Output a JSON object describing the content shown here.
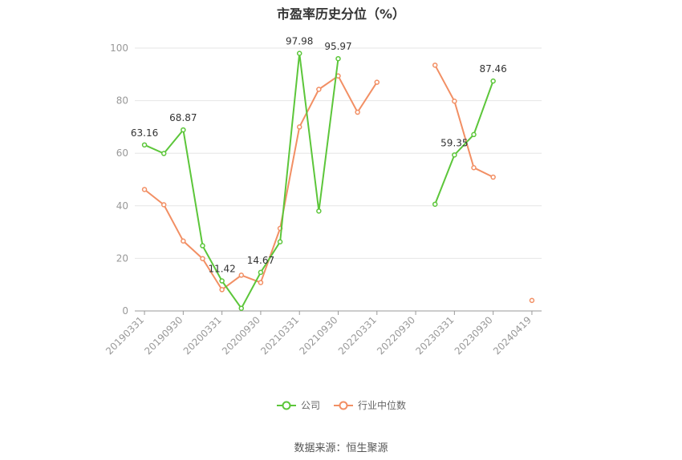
{
  "chart_data": {
    "type": "line",
    "title": "市盈率历史分位（%）",
    "xlabel": "",
    "ylabel": "",
    "ylim": [
      0,
      100
    ],
    "yticks": [
      0,
      20,
      40,
      60,
      80,
      100
    ],
    "categories": [
      "20190331",
      "20190630",
      "20190930",
      "20191231",
      "20200331",
      "20200630",
      "20200930",
      "20201231",
      "20210331",
      "20210630",
      "20210930",
      "20211231",
      "20220331",
      "20220630",
      "20220930",
      "20221231",
      "20230331",
      "20230630",
      "20230930",
      "20231231",
      "20240419"
    ],
    "tick_labels": [
      "20190331",
      "20190930",
      "20200331",
      "20200930",
      "20210331",
      "20210930",
      "20220331",
      "20220930",
      "20230331",
      "20230930",
      "20240419"
    ],
    "grid": true,
    "legend_position": "bottom",
    "series": [
      {
        "name": "公司",
        "color": "#5cc63a",
        "values": [
          63.16,
          59.9,
          68.87,
          24.8,
          11.42,
          1.0,
          14.67,
          26.3,
          97.98,
          38.0,
          95.97,
          null,
          null,
          null,
          null,
          40.6,
          59.35,
          67.1,
          87.46,
          null,
          null
        ],
        "labels": [
          "63.16",
          null,
          "68.87",
          null,
          "11.42",
          null,
          "14.67",
          null,
          "97.98",
          null,
          "95.97",
          null,
          null,
          null,
          null,
          null,
          "59.35",
          null,
          "87.46",
          null,
          null
        ]
      },
      {
        "name": "行业中位数",
        "color": "#f28f64",
        "values": [
          46.2,
          40.4,
          26.6,
          19.9,
          8.1,
          13.6,
          10.8,
          31.4,
          70.0,
          84.3,
          89.4,
          75.6,
          87.0,
          null,
          null,
          93.5,
          79.8,
          54.5,
          50.9,
          null,
          4.0
        ]
      }
    ]
  },
  "footer": {
    "source": "数据来源：恒生聚源"
  }
}
